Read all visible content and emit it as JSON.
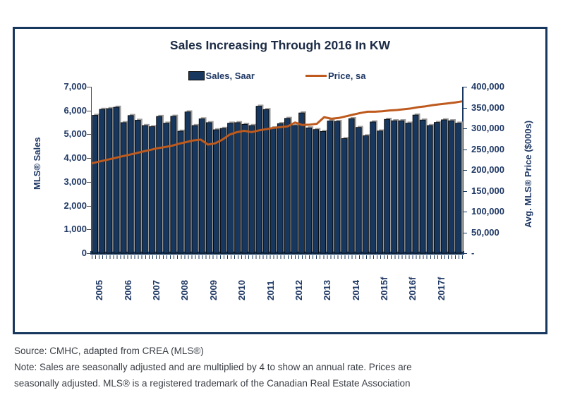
{
  "title": "Sales Increasing Through 2016 In KW",
  "legend": [
    {
      "label": "Sales, Saar",
      "type": "bar"
    },
    {
      "label": "Price, sa",
      "type": "line"
    }
  ],
  "left_axis": {
    "title": "MLS® Sales",
    "ticks": [
      {
        "label": "7,000",
        "value": 7000
      },
      {
        "label": "6,000",
        "value": 6000
      },
      {
        "label": "5,000",
        "value": 5000
      },
      {
        "label": "4,000",
        "value": 4000
      },
      {
        "label": "3,000",
        "value": 3000
      },
      {
        "label": "2,000",
        "value": 2000
      },
      {
        "label": "1,000",
        "value": 1000
      },
      {
        "label": "0",
        "value": 0
      }
    ]
  },
  "right_axis": {
    "title": "Avg. MLS® Price ($000s)",
    "ticks": [
      {
        "label": "400,000",
        "value": 400000
      },
      {
        "label": "350,000",
        "value": 350000
      },
      {
        "label": "300,000",
        "value": 300000
      },
      {
        "label": "250,000",
        "value": 250000
      },
      {
        "label": "200,000",
        "value": 200000
      },
      {
        "label": "150,000",
        "value": 150000
      },
      {
        "label": "100,000",
        "value": 100000
      },
      {
        "label": "50,000",
        "value": 50000
      },
      {
        "label": "-",
        "value": 0
      }
    ]
  },
  "footer": {
    "line1": "Source: CMHC, adapted from CREA (MLS®)",
    "line2": "Note: Sales are seasonally adjusted and are multiplied by 4 to show an annual rate. Prices are",
    "line3": "seasonally adjusted. MLS® is a registered trademark of the Canadian Real Estate Association"
  },
  "colors": {
    "bar": "#17375E",
    "bar_shadow": "#9B9B9B",
    "line": "#BE5A1D",
    "border": "#17375E",
    "axis_text": "#1F3864",
    "footer_text": "#3A3E45"
  },
  "chart_data": {
    "type": "bar+line",
    "title": "Sales Increasing Through 2016 In KW",
    "x_years": [
      "2005",
      "2006",
      "2007",
      "2008",
      "2009",
      "2010",
      "2011",
      "2012",
      "2013",
      "2014",
      "2015f",
      "2016f",
      "2017f"
    ],
    "quarters_per_year": 4,
    "left_ylabel": "MLS® Sales",
    "right_ylabel": "Avg. MLS® Price ($000s)",
    "left_ylim": [
      0,
      7000
    ],
    "right_ylim": [
      0,
      400000
    ],
    "grid": false,
    "legend_position": "top",
    "series": [
      {
        "name": "Sales, Saar",
        "type": "bar",
        "axis": "left",
        "values": [
          5800,
          6050,
          6080,
          6140,
          5490,
          5790,
          5590,
          5370,
          5320,
          5750,
          5470,
          5760,
          5130,
          5940,
          5370,
          5650,
          5490,
          5190,
          5250,
          5470,
          5490,
          5420,
          5370,
          6180,
          6040,
          5270,
          5450,
          5670,
          5370,
          5900,
          5270,
          5200,
          5120,
          5560,
          5540,
          4820,
          5660,
          5290,
          4940,
          5520,
          5140,
          5630,
          5570,
          5570,
          5470,
          5810,
          5600,
          5370,
          5500,
          5610,
          5570,
          5470
        ]
      },
      {
        "name": "Price, sa",
        "type": "line",
        "axis": "right",
        "values": [
          216000,
          220000,
          224000,
          228000,
          232000,
          236000,
          240000,
          244000,
          248000,
          252000,
          255000,
          258000,
          263000,
          267000,
          271000,
          273000,
          261000,
          264000,
          273000,
          285000,
          291000,
          294000,
          291000,
          295000,
          298000,
          301000,
          303000,
          305000,
          314000,
          308000,
          309000,
          311000,
          327000,
          323000,
          325000,
          329000,
          333000,
          337000,
          340000,
          340000,
          341000,
          343000,
          344000,
          346000,
          348000,
          351000,
          353000,
          356000,
          358000,
          360000,
          362000,
          365000
        ]
      }
    ]
  }
}
